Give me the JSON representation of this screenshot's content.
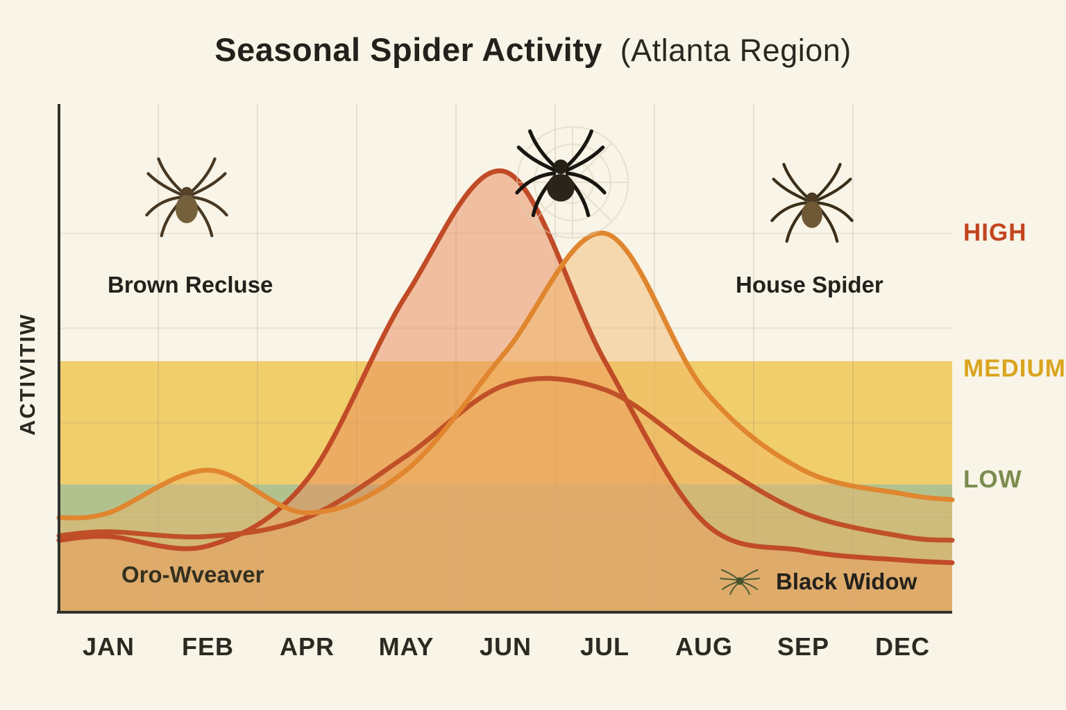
{
  "title": {
    "main": "Seasonal Spider Activity",
    "suffix": "(Atlanta Region)"
  },
  "y_axis_label": "ACTIVITIW",
  "chart_data": {
    "type": "area",
    "title": "Seasonal Spider Activity (Atlanta Region)",
    "categories": [
      "JAN",
      "FEB",
      "APR",
      "MAY",
      "JUN",
      "JUL",
      "AUG",
      "SEP",
      "DEC"
    ],
    "xlabel": "",
    "ylabel": "ACTIVITIW",
    "ylim": [
      0,
      1
    ],
    "grid": true,
    "legend_position": "right",
    "levels": {
      "high": {
        "label": "HIGH",
        "color": "#c2451f",
        "value": 0.8
      },
      "medium": {
        "label": "MEDIUM",
        "color": "#d9a41e",
        "value": 0.51
      },
      "low": {
        "label": "LOW",
        "color": "#7b8b50",
        "value": 0.28
      }
    },
    "bands": [
      {
        "name": "medium-zone",
        "from": 0.27,
        "to": 0.53,
        "color": "#edc44e",
        "opacity": 0.8
      },
      {
        "name": "low-zone",
        "from": 0.0,
        "to": 0.27,
        "color": "#a9bd85",
        "opacity": 0.9
      }
    ],
    "series": [
      {
        "name": "Brown Recluse",
        "color": "#c14b27",
        "fill": "#e98a5a",
        "fill_opacity": 0.5,
        "values": [
          0.16,
          0.14,
          0.28,
          0.67,
          0.93,
          0.53,
          0.19,
          0.13,
          0.11
        ]
      },
      {
        "name": "Orb-weaver",
        "color": "#c05028",
        "fill": "#d98a55",
        "fill_opacity": 0.15,
        "values": [
          0.17,
          0.16,
          0.2,
          0.33,
          0.48,
          0.47,
          0.33,
          0.21,
          0.16
        ]
      },
      {
        "name": "House Spider",
        "color": "#e0862f",
        "fill": "#f2b566",
        "fill_opacity": 0.45,
        "values": [
          0.21,
          0.3,
          0.21,
          0.3,
          0.55,
          0.8,
          0.47,
          0.3,
          0.25
        ]
      }
    ],
    "annotations": {
      "brown_recluse": "Brown Recluse",
      "house_spider": "House Spider",
      "orb_weaver": "Oro-Wveaver",
      "black_widow": "Black Widow"
    }
  }
}
